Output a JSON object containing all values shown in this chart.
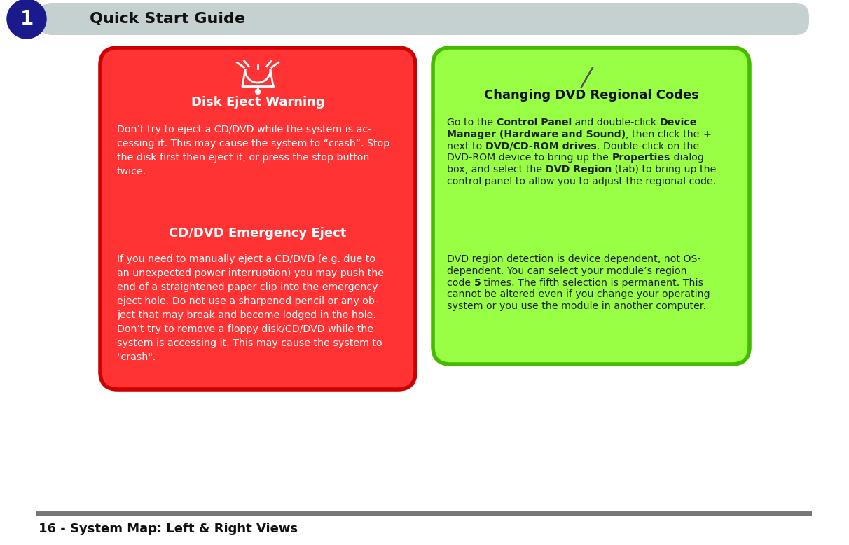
{
  "bg_color": "#ffffff",
  "header_bar_color": "#c5d0d0",
  "header_text": "Quick Start Guide",
  "header_circle_color": "#1a1a8c",
  "header_circle_text": "1",
  "footer_text": "16 - System Map: Left & Right Views",
  "footer_line_color": "#777777",
  "left_box_bg": "#ff3333",
  "left_box_border": "#cc0000",
  "left_title1": "Disk Eject Warning",
  "left_title2": "CD/DVD Emergency Eject",
  "left_text1": "Don’t try to eject a CD/DVD while the system is ac-\ncessing it. This may cause the system to “crash”. Stop\nthe disk first then eject it, or press the stop button\ntwice.",
  "left_text2": "If you need to manually eject a CD/DVD (e.g. due to\nan unexpected power interruption) you may push the\nend of a straightened paper clip into the emergency\neject hole. Do not use a sharpened pencil or any ob-\nject that may break and become lodged in the hole.\nDon’t try to remove a floppy disk/CD/DVD while the\nsystem is accessing it. This may cause the system to\n\"crash\".",
  "right_box_bg": "#99ff44",
  "right_box_border": "#44bb00",
  "right_title": "Changing DVD Regional Codes",
  "right_text1": "Go to the  Control Panel  and double-click  Device\nManager (Hardware and Sound) , then click the  +\nnext to  DVD/CD-ROM drives . Double-click on the\nDVD-ROM device to bring up the  Properties  dialog\nbox, and select the  DVD Region  (tab) to bring up the\ncontrol panel to allow you to adjust the regional code.",
  "right_text2": "DVD region detection is device dependent, not OS-\ndependent. You can select your module’s region\ncode  5  times. The fifth selection is permanent. This\ncannot be altered even if you change your operating\nsystem or you use the module in another computer.",
  "text_color_left": "#ffffff",
  "text_color_right": "#222222"
}
